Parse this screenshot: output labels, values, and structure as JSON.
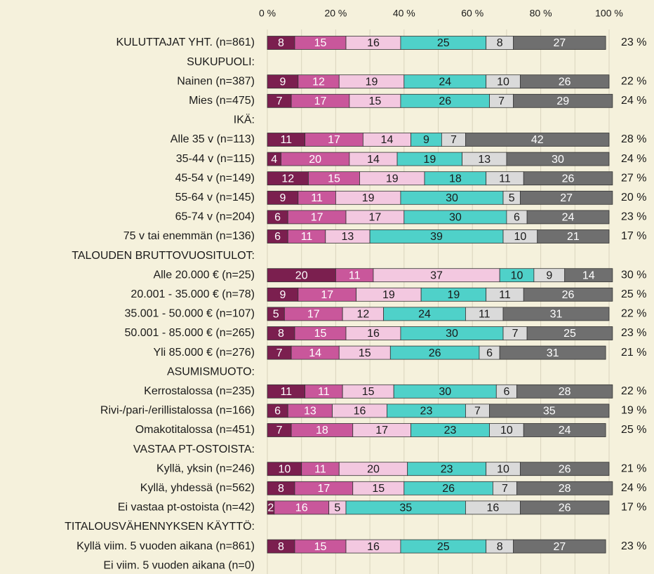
{
  "chart_data": {
    "type": "stacked_bar_horizontal",
    "categories": [
      "KULUTTAJAT YHT. (n=861)",
      "SUKUPUOLI:",
      "Nainen (n=387)",
      "Mies (n=475)",
      "IKÄ:",
      "Alle 35 v (n=113)",
      "35-44 v (n=115)",
      "45-54 v (n=149)",
      "55-64 v (n=145)",
      "65-74 v (n=204)",
      "75 v tai enemmän (n=136)",
      "TALOUDEN BRUTTOVUOSITULOT:",
      "Alle 20.000 € (n=25)",
      "20.001 - 35.000 € (n=78)",
      "35.001 - 50.000 € (n=107)",
      "50.001 - 85.000 € (n=265)",
      "Yli 85.000 € (n=276)",
      "ASUMISMUOTO:",
      "Kerrostalossa (n=235)",
      "Rivi-/pari-/erillistalossa (n=166)",
      "Omakotitalossa (n=451)",
      "VASTAA PT-OSTOISTA:",
      "Kyllä, yksin (n=246)",
      "Kyllä, yhdessä (n=562)",
      "Ei vastaa pt-ostoista (n=42)",
      "TITALOUSVÄHENNYKSEN KÄYTTÖ:",
      "Kyllä viim. 5 vuoden aikana (n=861)",
      "Ei viim. 5 vuoden aikana (n=0)"
    ],
    "series": [
      {
        "color": "#7b1f4f",
        "label_color": "#ffffff",
        "values": [
          8,
          null,
          9,
          7,
          null,
          11,
          4,
          12,
          9,
          6,
          6,
          null,
          20,
          9,
          5,
          8,
          7,
          null,
          11,
          6,
          7,
          null,
          10,
          8,
          2,
          null,
          8,
          null
        ]
      },
      {
        "color": "#c9579b",
        "label_color": "#ffffff",
        "values": [
          15,
          null,
          12,
          17,
          null,
          17,
          20,
          15,
          11,
          17,
          11,
          null,
          11,
          17,
          17,
          15,
          14,
          null,
          11,
          13,
          18,
          null,
          11,
          17,
          16,
          null,
          15,
          null
        ]
      },
      {
        "color": "#f3c8e0",
        "label_color": "#1a1a1a",
        "values": [
          16,
          null,
          19,
          15,
          null,
          14,
          14,
          19,
          19,
          17,
          13,
          null,
          37,
          19,
          12,
          16,
          15,
          null,
          15,
          16,
          17,
          null,
          20,
          15,
          5,
          null,
          16,
          null
        ]
      },
      {
        "color": "#4fd1c9",
        "label_color": "#1a1a1a",
        "values": [
          25,
          null,
          24,
          26,
          null,
          9,
          19,
          18,
          30,
          30,
          39,
          null,
          10,
          19,
          24,
          30,
          26,
          null,
          30,
          23,
          23,
          null,
          23,
          26,
          35,
          null,
          25,
          null
        ]
      },
      {
        "color": "#dadada",
        "label_color": "#1a1a1a",
        "values": [
          8,
          null,
          10,
          7,
          null,
          7,
          13,
          11,
          5,
          6,
          10,
          null,
          9,
          11,
          11,
          7,
          6,
          null,
          6,
          7,
          10,
          null,
          10,
          7,
          16,
          null,
          8,
          null
        ]
      },
      {
        "color": "#6f6f6f",
        "label_color": "#ffffff",
        "values": [
          27,
          null,
          26,
          29,
          null,
          42,
          30,
          26,
          27,
          24,
          21,
          null,
          14,
          26,
          31,
          25,
          31,
          null,
          28,
          35,
          24,
          null,
          26,
          28,
          26,
          null,
          27,
          null
        ]
      }
    ],
    "right_labels": [
      "23 %",
      null,
      "22 %",
      "24 %",
      null,
      "28 %",
      "24 %",
      "27 %",
      "20 %",
      "23 %",
      "17 %",
      null,
      "30 %",
      "25 %",
      "22 %",
      "23 %",
      "21 %",
      null,
      "22 %",
      "19 %",
      "25 %",
      null,
      "21 %",
      "24 %",
      "17 %",
      null,
      "23 %",
      null
    ],
    "xlim": [
      0,
      100
    ],
    "xticks": [
      {
        "value": 0,
        "label": "0 %"
      },
      {
        "value": 20,
        "label": "20 %"
      },
      {
        "value": 40,
        "label": "40 %"
      },
      {
        "value": 60,
        "label": "60 %"
      },
      {
        "value": 80,
        "label": "80 %"
      },
      {
        "value": 100,
        "label": "100 %"
      }
    ],
    "minor_xticks": [
      10,
      30,
      50,
      70,
      90
    ],
    "grid": true
  }
}
